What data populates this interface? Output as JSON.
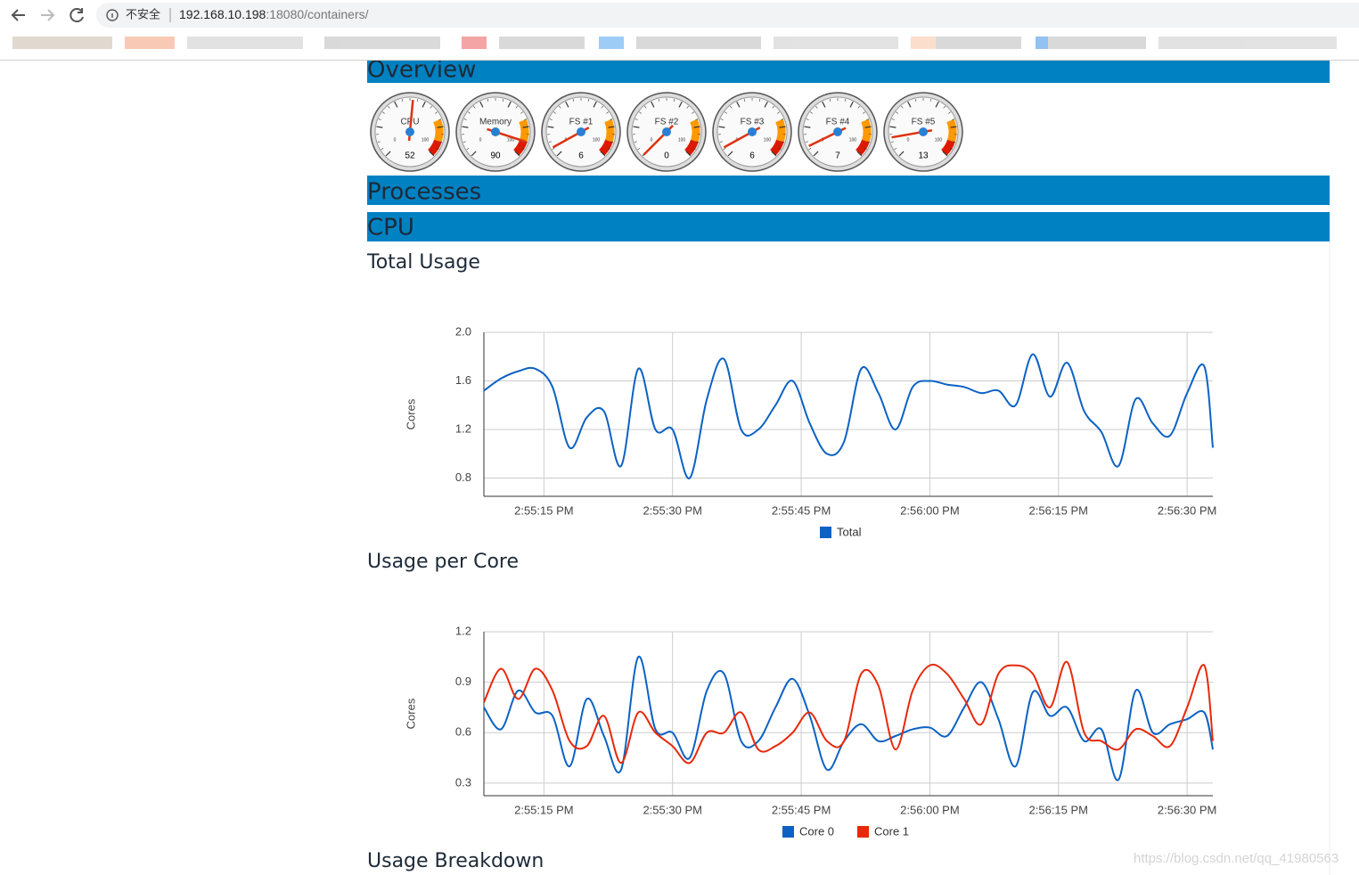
{
  "browser": {
    "security_label": "不安全",
    "url_host": "192.168.10.198",
    "url_rest": ":18080/containers/"
  },
  "sections": {
    "overview": "Overview",
    "processes": "Processes",
    "cpu": "CPU",
    "breakdown": "Usage Breakdown"
  },
  "gauge_min": 0,
  "gauge_max": 100,
  "gauges": [
    {
      "label": "CPU",
      "value": 52
    },
    {
      "label": "Memory",
      "value": 90
    },
    {
      "label": "FS #1",
      "value": 6
    },
    {
      "label": "FS #2",
      "value": 0
    },
    {
      "label": "FS #3",
      "value": 6
    },
    {
      "label": "FS #4",
      "value": 7
    },
    {
      "label": "FS #5",
      "value": 13
    }
  ],
  "chart_data": [
    {
      "type": "line",
      "title": "Total Usage",
      "y_label": "Cores",
      "x": [
        "2:55:08 PM",
        "2:55:10 PM",
        "2:55:12 PM",
        "2:55:14 PM",
        "2:55:16 PM",
        "2:55:18 PM",
        "2:55:20 PM",
        "2:55:22 PM",
        "2:55:24 PM",
        "2:55:26 PM",
        "2:55:28 PM",
        "2:55:30 PM",
        "2:55:32 PM",
        "2:55:34 PM",
        "2:55:36 PM",
        "2:55:38 PM",
        "2:55:40 PM",
        "2:55:42 PM",
        "2:55:44 PM",
        "2:55:46 PM",
        "2:55:48 PM",
        "2:55:50 PM",
        "2:55:52 PM",
        "2:55:54 PM",
        "2:55:56 PM",
        "2:55:58 PM",
        "2:56:00 PM",
        "2:56:02 PM",
        "2:56:04 PM",
        "2:56:06 PM",
        "2:56:08 PM",
        "2:56:10 PM",
        "2:56:12 PM",
        "2:56:14 PM",
        "2:56:16 PM",
        "2:56:18 PM",
        "2:56:20 PM",
        "2:56:22 PM",
        "2:56:24 PM",
        "2:56:26 PM",
        "2:56:28 PM",
        "2:56:30 PM",
        "2:56:32 PM",
        "2:56:33 PM"
      ],
      "series": [
        {
          "name": "Total",
          "color": "#0b62c4",
          "values": [
            1.52,
            1.62,
            1.68,
            1.7,
            1.55,
            1.05,
            1.3,
            1.35,
            0.9,
            1.7,
            1.2,
            1.2,
            0.8,
            1.45,
            1.78,
            1.2,
            1.2,
            1.4,
            1.6,
            1.25,
            1.0,
            1.1,
            1.7,
            1.5,
            1.2,
            1.55,
            1.6,
            1.57,
            1.55,
            1.5,
            1.52,
            1.4,
            1.82,
            1.47,
            1.75,
            1.35,
            1.18,
            0.9,
            1.45,
            1.25,
            1.15,
            1.5,
            1.72,
            1.05
          ]
        }
      ],
      "xlim": [
        "2:55:08 PM",
        "2:56:33 PM"
      ],
      "xticks": [
        "2:55:15 PM",
        "2:55:30 PM",
        "2:55:45 PM",
        "2:56:00 PM",
        "2:56:15 PM",
        "2:56:30 PM"
      ],
      "ylim": [
        0.65,
        2.0
      ],
      "yticks": [
        {
          "value": 0.8,
          "label": "0.8"
        },
        {
          "value": 1.2,
          "label": "1.2"
        },
        {
          "value": 1.6,
          "label": "1.6"
        },
        {
          "value": 2,
          "label": "2.0"
        }
      ],
      "grid": true
    },
    {
      "type": "line",
      "title": "Usage per Core",
      "y_label": "Cores",
      "x": [
        "2:55:08 PM",
        "2:55:10 PM",
        "2:55:12 PM",
        "2:55:14 PM",
        "2:55:16 PM",
        "2:55:18 PM",
        "2:55:20 PM",
        "2:55:22 PM",
        "2:55:24 PM",
        "2:55:26 PM",
        "2:55:28 PM",
        "2:55:30 PM",
        "2:55:32 PM",
        "2:55:34 PM",
        "2:55:36 PM",
        "2:55:38 PM",
        "2:55:40 PM",
        "2:55:42 PM",
        "2:55:44 PM",
        "2:55:46 PM",
        "2:55:48 PM",
        "2:55:50 PM",
        "2:55:52 PM",
        "2:55:54 PM",
        "2:55:56 PM",
        "2:55:58 PM",
        "2:56:00 PM",
        "2:56:02 PM",
        "2:56:04 PM",
        "2:56:06 PM",
        "2:56:08 PM",
        "2:56:10 PM",
        "2:56:12 PM",
        "2:56:14 PM",
        "2:56:16 PM",
        "2:56:18 PM",
        "2:56:20 PM",
        "2:56:22 PM",
        "2:56:24 PM",
        "2:56:26 PM",
        "2:56:28 PM",
        "2:56:30 PM",
        "2:56:32 PM",
        "2:56:33 PM"
      ],
      "series": [
        {
          "name": "Core 0",
          "color": "#0b62c4",
          "values": [
            0.75,
            0.62,
            0.85,
            0.72,
            0.7,
            0.4,
            0.8,
            0.58,
            0.38,
            1.05,
            0.62,
            0.6,
            0.45,
            0.85,
            0.95,
            0.55,
            0.55,
            0.75,
            0.92,
            0.7,
            0.38,
            0.55,
            0.65,
            0.55,
            0.58,
            0.62,
            0.63,
            0.58,
            0.75,
            0.9,
            0.68,
            0.4,
            0.84,
            0.7,
            0.75,
            0.55,
            0.62,
            0.32,
            0.85,
            0.6,
            0.65,
            0.68,
            0.72,
            0.5
          ]
        },
        {
          "name": "Core 1",
          "color": "#e8290b",
          "values": [
            0.78,
            0.98,
            0.8,
            0.98,
            0.85,
            0.55,
            0.52,
            0.7,
            0.42,
            0.72,
            0.6,
            0.52,
            0.42,
            0.6,
            0.6,
            0.72,
            0.5,
            0.52,
            0.6,
            0.72,
            0.55,
            0.55,
            0.95,
            0.88,
            0.5,
            0.85,
            1.0,
            0.95,
            0.8,
            0.65,
            0.95,
            1.0,
            0.95,
            0.75,
            1.02,
            0.6,
            0.55,
            0.5,
            0.62,
            0.58,
            0.52,
            0.75,
            1.0,
            0.55
          ]
        }
      ],
      "xlim": [
        "2:55:08 PM",
        "2:56:33 PM"
      ],
      "xticks": [
        "2:55:15 PM",
        "2:55:30 PM",
        "2:55:45 PM",
        "2:56:00 PM",
        "2:56:15 PM",
        "2:56:30 PM"
      ],
      "ylim": [
        0.225,
        1.2
      ],
      "yticks": [
        0.3,
        0.6,
        0.9,
        1.2
      ],
      "grid": true
    }
  ],
  "watermark": "https://blog.csdn.net/qq_41980563"
}
